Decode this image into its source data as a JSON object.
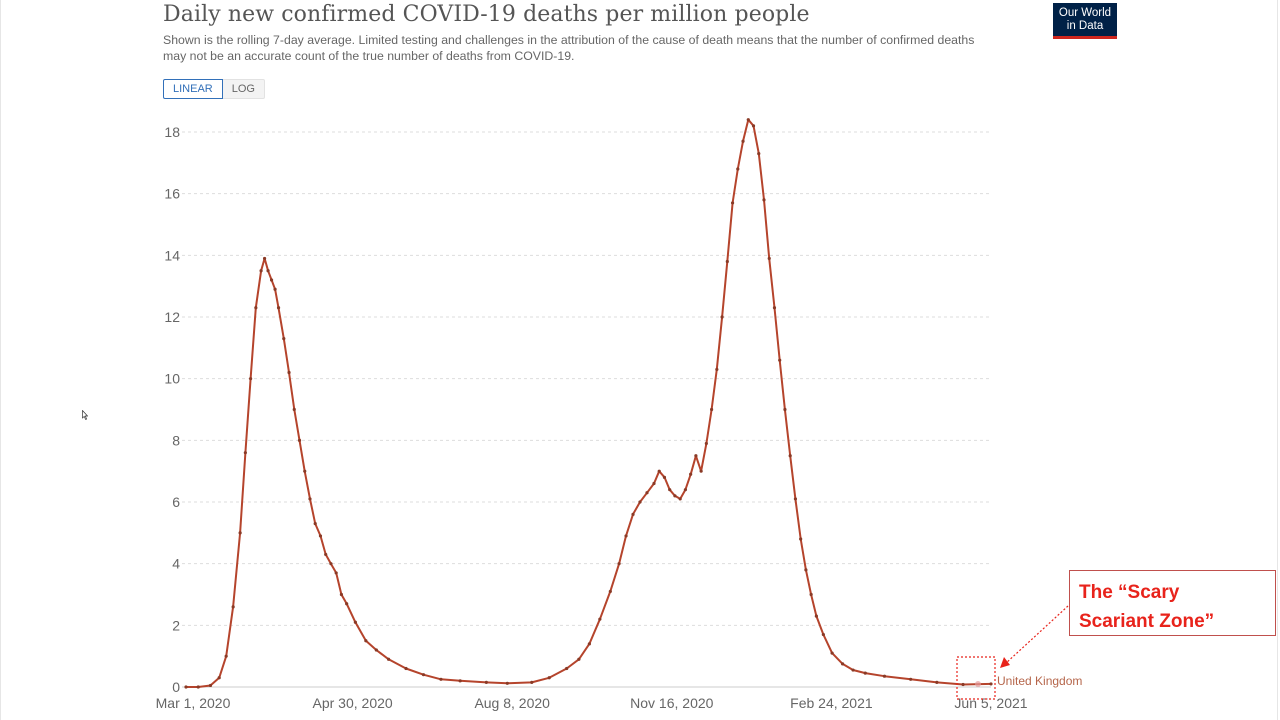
{
  "header": {
    "title": "Daily new confirmed COVID-19 deaths per million people",
    "subtitle": "Shown is the rolling 7-day average. Limited testing and challenges in the attribution of the cause of death means that the number of confirmed deaths may not be an accurate count of the true number of deaths from COVID-19."
  },
  "logo": {
    "line1": "Our World",
    "line2": "in Data",
    "bg_color": "#002147",
    "accent_color": "#ce261e"
  },
  "scale_toggle": {
    "linear_label": "LINEAR",
    "log_label": "LOG",
    "selected": "LINEAR"
  },
  "annotation": {
    "callout_text": "The “Scary\nScariant Zone”",
    "text_color": "#e8231b",
    "border_color": "#c0504d"
  },
  "chart_data": {
    "type": "line",
    "title": "Daily new confirmed COVID-19 deaths per million people",
    "xlabel": "",
    "ylabel": "",
    "x_tick_labels": [
      "Mar 1, 2020",
      "Apr 30, 2020",
      "Aug 8, 2020",
      "Nov 16, 2020",
      "Feb 24, 2021",
      "Jun 5, 2021"
    ],
    "y_tick_labels": [
      "0",
      "2",
      "4",
      "6",
      "8",
      "10",
      "12",
      "14",
      "16",
      "18"
    ],
    "xlim": [
      "2020-03-01",
      "2021-06-05"
    ],
    "ylim": [
      0,
      18.5
    ],
    "grid": "horizontal dashed",
    "line_color": "#b5442c",
    "marker_color": "#8a3a26",
    "series": [
      {
        "name": "United Kingdom",
        "points": [
          [
            "2020-03-01",
            0.0
          ],
          [
            "2020-03-08",
            0.0
          ],
          [
            "2020-03-15",
            0.05
          ],
          [
            "2020-03-20",
            0.3
          ],
          [
            "2020-03-24",
            1.0
          ],
          [
            "2020-03-28",
            2.6
          ],
          [
            "2020-04-01",
            5.0
          ],
          [
            "2020-04-04",
            7.6
          ],
          [
            "2020-04-07",
            10.0
          ],
          [
            "2020-04-10",
            12.3
          ],
          [
            "2020-04-13",
            13.5
          ],
          [
            "2020-04-15",
            13.9
          ],
          [
            "2020-04-17",
            13.5
          ],
          [
            "2020-04-19",
            13.2
          ],
          [
            "2020-04-21",
            12.9
          ],
          [
            "2020-04-23",
            12.3
          ],
          [
            "2020-04-26",
            11.3
          ],
          [
            "2020-04-29",
            10.2
          ],
          [
            "2020-05-02",
            9.0
          ],
          [
            "2020-05-05",
            8.0
          ],
          [
            "2020-05-08",
            7.0
          ],
          [
            "2020-05-11",
            6.1
          ],
          [
            "2020-05-14",
            5.3
          ],
          [
            "2020-05-17",
            4.9
          ],
          [
            "2020-05-20",
            4.3
          ],
          [
            "2020-05-23",
            4.0
          ],
          [
            "2020-05-26",
            3.7
          ],
          [
            "2020-05-29",
            3.0
          ],
          [
            "2020-06-01",
            2.7
          ],
          [
            "2020-06-06",
            2.1
          ],
          [
            "2020-06-12",
            1.5
          ],
          [
            "2020-06-18",
            1.2
          ],
          [
            "2020-06-25",
            0.9
          ],
          [
            "2020-07-05",
            0.6
          ],
          [
            "2020-07-15",
            0.4
          ],
          [
            "2020-07-25",
            0.25
          ],
          [
            "2020-08-05",
            0.2
          ],
          [
            "2020-08-20",
            0.15
          ],
          [
            "2020-09-01",
            0.12
          ],
          [
            "2020-09-15",
            0.15
          ],
          [
            "2020-09-25",
            0.3
          ],
          [
            "2020-10-05",
            0.6
          ],
          [
            "2020-10-12",
            0.9
          ],
          [
            "2020-10-18",
            1.4
          ],
          [
            "2020-10-24",
            2.2
          ],
          [
            "2020-10-30",
            3.1
          ],
          [
            "2020-11-04",
            4.0
          ],
          [
            "2020-11-08",
            4.9
          ],
          [
            "2020-11-12",
            5.6
          ],
          [
            "2020-11-16",
            6.0
          ],
          [
            "2020-11-20",
            6.3
          ],
          [
            "2020-11-24",
            6.6
          ],
          [
            "2020-11-27",
            7.0
          ],
          [
            "2020-11-30",
            6.8
          ],
          [
            "2020-12-03",
            6.4
          ],
          [
            "2020-12-06",
            6.2
          ],
          [
            "2020-12-09",
            6.1
          ],
          [
            "2020-12-12",
            6.4
          ],
          [
            "2020-12-15",
            6.9
          ],
          [
            "2020-12-18",
            7.5
          ],
          [
            "2020-12-21",
            7.0
          ],
          [
            "2020-12-24",
            7.9
          ],
          [
            "2020-12-27",
            9.0
          ],
          [
            "2020-12-30",
            10.3
          ],
          [
            "2021-01-02",
            12.0
          ],
          [
            "2021-01-05",
            13.8
          ],
          [
            "2021-01-08",
            15.7
          ],
          [
            "2021-01-11",
            16.8
          ],
          [
            "2021-01-14",
            17.7
          ],
          [
            "2021-01-17",
            18.4
          ],
          [
            "2021-01-20",
            18.2
          ],
          [
            "2021-01-23",
            17.3
          ],
          [
            "2021-01-26",
            15.8
          ],
          [
            "2021-01-29",
            13.9
          ],
          [
            "2021-02-01",
            12.3
          ],
          [
            "2021-02-04",
            10.6
          ],
          [
            "2021-02-07",
            9.0
          ],
          [
            "2021-02-10",
            7.5
          ],
          [
            "2021-02-13",
            6.1
          ],
          [
            "2021-02-16",
            4.8
          ],
          [
            "2021-02-19",
            3.8
          ],
          [
            "2021-02-22",
            3.0
          ],
          [
            "2021-02-25",
            2.3
          ],
          [
            "2021-03-01",
            1.7
          ],
          [
            "2021-03-06",
            1.1
          ],
          [
            "2021-03-12",
            0.75
          ],
          [
            "2021-03-18",
            0.55
          ],
          [
            "2021-03-25",
            0.45
          ],
          [
            "2021-04-05",
            0.35
          ],
          [
            "2021-04-20",
            0.25
          ],
          [
            "2021-05-05",
            0.15
          ],
          [
            "2021-05-20",
            0.08
          ],
          [
            "2021-06-05",
            0.1
          ]
        ]
      }
    ],
    "end_label": "United Kingdom"
  }
}
